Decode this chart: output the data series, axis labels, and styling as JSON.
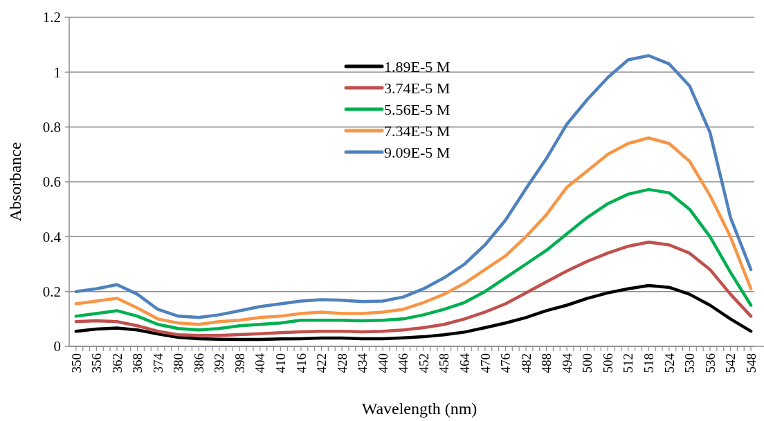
{
  "chart_data": {
    "type": "line",
    "xlabel": "Wavelength (nm)",
    "ylabel": "Absorbance",
    "x": [
      350,
      356,
      362,
      368,
      374,
      380,
      386,
      392,
      398,
      404,
      410,
      416,
      422,
      428,
      434,
      440,
      446,
      452,
      458,
      464,
      470,
      476,
      482,
      488,
      494,
      500,
      506,
      512,
      518,
      524,
      530,
      536,
      542,
      548
    ],
    "xlim": [
      348,
      549
    ],
    "ylim": [
      0,
      1.2
    ],
    "yticks": [
      0,
      0.2,
      0.4,
      0.6,
      0.8,
      1,
      1.2
    ],
    "xticks": [
      350,
      {
        "value": 352,
        "label": null
      },
      {
        "value": 354,
        "label": null
      },
      356,
      {
        "value": 358,
        "label": null
      },
      {
        "value": 360,
        "label": null
      },
      362,
      {
        "value": 364,
        "label": null
      },
      {
        "value": 366,
        "label": null
      },
      368,
      {
        "value": 370,
        "label": null
      },
      {
        "value": 372,
        "label": null
      },
      374,
      {
        "value": 376,
        "label": null
      },
      {
        "value": 378,
        "label": null
      },
      380,
      {
        "value": 382,
        "label": null
      },
      {
        "value": 384,
        "label": null
      },
      386,
      {
        "value": 388,
        "label": null
      },
      {
        "value": 390,
        "label": null
      },
      392,
      {
        "value": 394,
        "label": null
      },
      {
        "value": 396,
        "label": null
      },
      398,
      {
        "value": 400,
        "label": null
      },
      {
        "value": 402,
        "label": null
      },
      404,
      {
        "value": 406,
        "label": null
      },
      {
        "value": 408,
        "label": null
      },
      410,
      {
        "value": 412,
        "label": null
      },
      {
        "value": 414,
        "label": null
      },
      416,
      {
        "value": 418,
        "label": null
      },
      {
        "value": 420,
        "label": null
      },
      422,
      {
        "value": 424,
        "label": null
      },
      {
        "value": 426,
        "label": null
      },
      428,
      {
        "value": 430,
        "label": null
      },
      {
        "value": 432,
        "label": null
      },
      434,
      {
        "value": 436,
        "label": null
      },
      {
        "value": 438,
        "label": null
      },
      440,
      {
        "value": 442,
        "label": null
      },
      {
        "value": 444,
        "label": null
      },
      446,
      {
        "value": 448,
        "label": null
      },
      {
        "value": 450,
        "label": null
      },
      452,
      {
        "value": 454,
        "label": null
      },
      {
        "value": 456,
        "label": null
      },
      458,
      {
        "value": 460,
        "label": null
      },
      {
        "value": 462,
        "label": null
      },
      464,
      {
        "value": 466,
        "label": null
      },
      {
        "value": 468,
        "label": null
      },
      470,
      {
        "value": 472,
        "label": null
      },
      {
        "value": 474,
        "label": null
      },
      476,
      {
        "value": 478,
        "label": null
      },
      {
        "value": 480,
        "label": null
      },
      482,
      {
        "value": 484,
        "label": null
      },
      {
        "value": 486,
        "label": null
      },
      488,
      {
        "value": 490,
        "label": null
      },
      {
        "value": 492,
        "label": null
      },
      494,
      {
        "value": 496,
        "label": null
      },
      {
        "value": 498,
        "label": null
      },
      500,
      {
        "value": 502,
        "label": null
      },
      {
        "value": 504,
        "label": null
      },
      506,
      {
        "value": 508,
        "label": null
      },
      {
        "value": 510,
        "label": null
      },
      512,
      {
        "value": 514,
        "label": null
      },
      {
        "value": 516,
        "label": null
      },
      518,
      {
        "value": 520,
        "label": null
      },
      {
        "value": 522,
        "label": null
      },
      524,
      {
        "value": 526,
        "label": null
      },
      {
        "value": 528,
        "label": null
      },
      530,
      {
        "value": 532,
        "label": null
      },
      {
        "value": 534,
        "label": null
      },
      536,
      {
        "value": 538,
        "label": null
      },
      {
        "value": 540,
        "label": null
      },
      542,
      {
        "value": 544,
        "label": null
      },
      {
        "value": 546,
        "label": null
      },
      548
    ],
    "grid": "y",
    "legend": "top",
    "marker": "none",
    "line_style": "solid",
    "series": [
      {
        "name": "1.89E-5 M",
        "color": "#000000",
        "values": [
          0.055,
          0.063,
          0.067,
          0.06,
          0.045,
          0.033,
          0.028,
          0.026,
          0.025,
          0.025,
          0.027,
          0.028,
          0.03,
          0.03,
          0.028,
          0.028,
          0.031,
          0.035,
          0.042,
          0.052,
          0.068,
          0.085,
          0.105,
          0.13,
          0.15,
          0.175,
          0.195,
          0.21,
          0.222,
          0.215,
          0.19,
          0.15,
          0.1,
          0.055
        ]
      },
      {
        "name": "3.74E-5 M",
        "color": "#c0504d",
        "values": [
          0.09,
          0.093,
          0.09,
          0.075,
          0.055,
          0.042,
          0.04,
          0.04,
          0.043,
          0.046,
          0.05,
          0.053,
          0.055,
          0.055,
          0.053,
          0.055,
          0.06,
          0.068,
          0.08,
          0.1,
          0.125,
          0.155,
          0.195,
          0.235,
          0.275,
          0.31,
          0.34,
          0.365,
          0.38,
          0.37,
          0.34,
          0.28,
          0.19,
          0.11
        ]
      },
      {
        "name": "5.56E-5 M",
        "color": "#00b050",
        "values": [
          0.11,
          0.12,
          0.13,
          0.11,
          0.08,
          0.065,
          0.06,
          0.065,
          0.075,
          0.08,
          0.085,
          0.095,
          0.095,
          0.095,
          0.093,
          0.095,
          0.1,
          0.115,
          0.135,
          0.16,
          0.2,
          0.25,
          0.3,
          0.35,
          0.41,
          0.47,
          0.52,
          0.555,
          0.572,
          0.56,
          0.5,
          0.4,
          0.27,
          0.15
        ]
      },
      {
        "name": "7.34E-5 M",
        "color": "#f79646",
        "values": [
          0.155,
          0.165,
          0.175,
          0.14,
          0.1,
          0.085,
          0.08,
          0.09,
          0.095,
          0.105,
          0.11,
          0.12,
          0.125,
          0.12,
          0.12,
          0.125,
          0.135,
          0.16,
          0.19,
          0.23,
          0.28,
          0.33,
          0.4,
          0.48,
          0.58,
          0.64,
          0.7,
          0.74,
          0.76,
          0.74,
          0.675,
          0.55,
          0.4,
          0.21
        ]
      },
      {
        "name": "9.09E-5 M",
        "color": "#4f81bd",
        "values": [
          0.2,
          0.21,
          0.225,
          0.19,
          0.135,
          0.11,
          0.105,
          0.115,
          0.13,
          0.145,
          0.155,
          0.165,
          0.17,
          0.168,
          0.163,
          0.165,
          0.18,
          0.21,
          0.25,
          0.3,
          0.37,
          0.46,
          0.575,
          0.685,
          0.81,
          0.9,
          0.98,
          1.045,
          1.06,
          1.03,
          0.95,
          0.78,
          0.47,
          0.28
        ]
      }
    ]
  }
}
